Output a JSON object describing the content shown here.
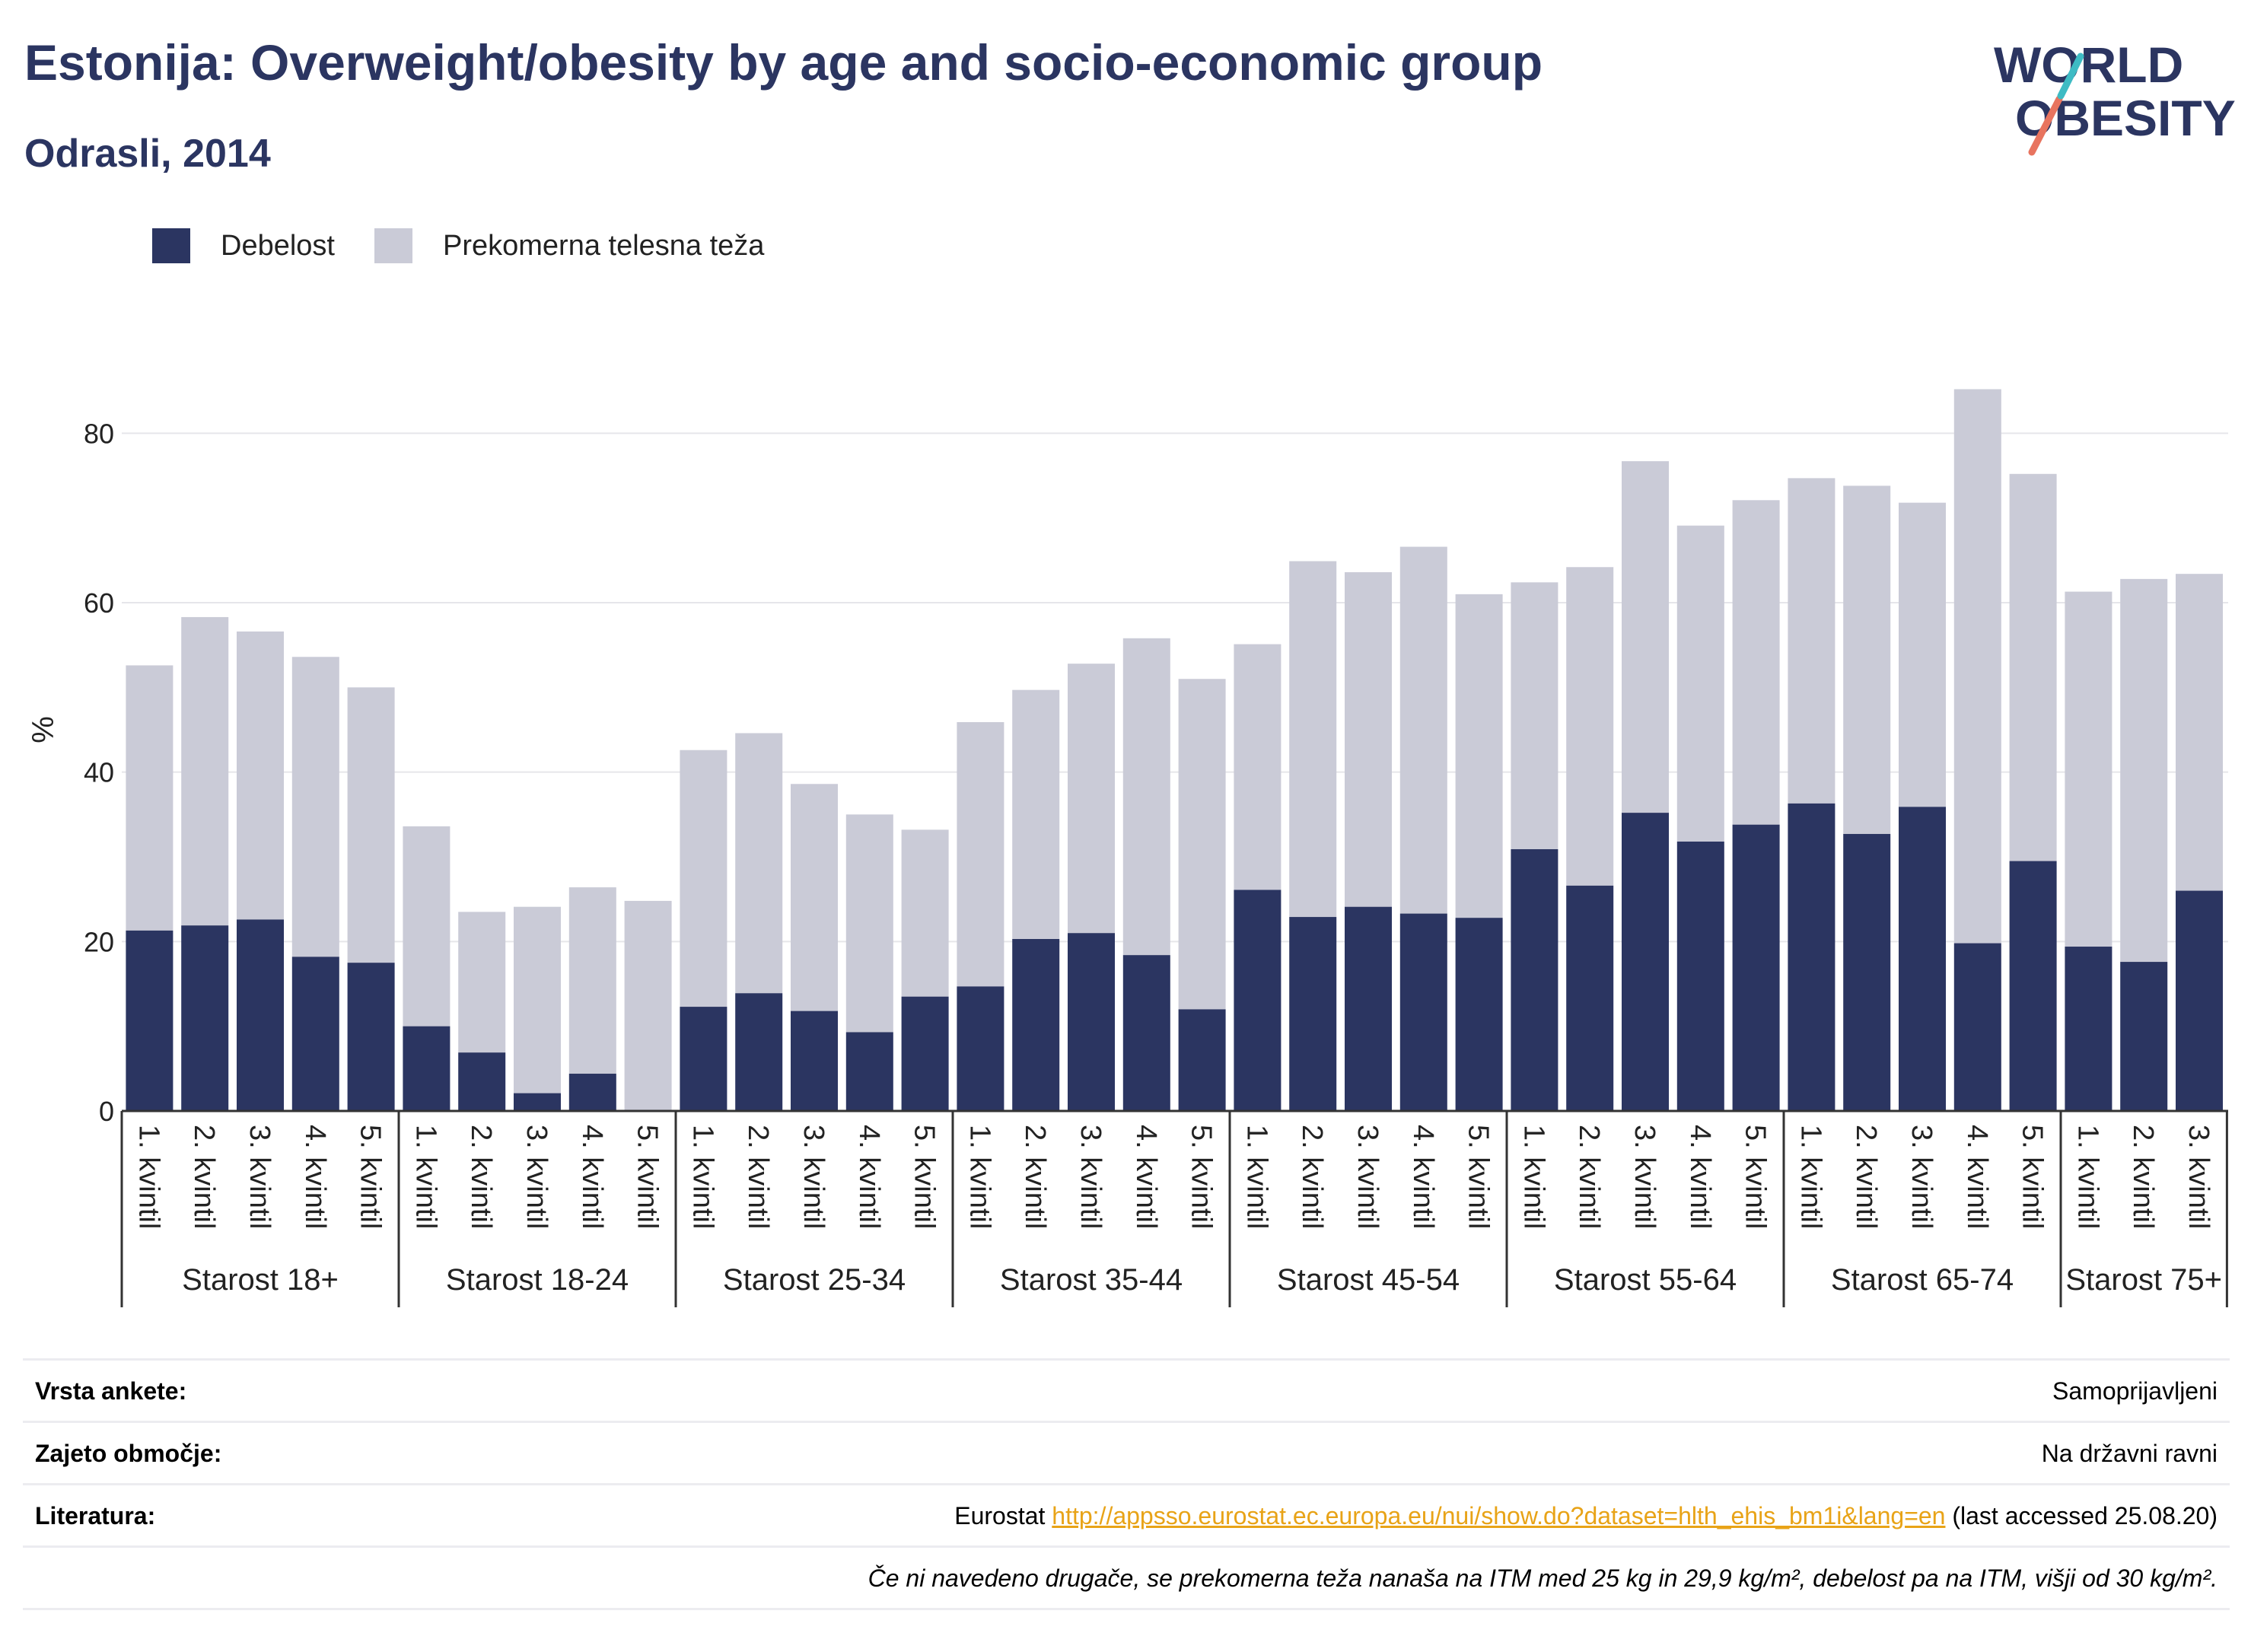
{
  "header": {
    "title": "Estonija: Overweight/obesity by age and socio-economic group",
    "subtitle": "Odrasli, 2014"
  },
  "logo": {
    "line1": "WORLD",
    "line2": "OBESITY"
  },
  "colors": {
    "obesity": "#2b3561",
    "overweight": "#cacbd7",
    "title": "#2b3561",
    "link": "#e8a317"
  },
  "legend": {
    "obesity_label": "Debelost",
    "overweight_label": "Prekomerna telesna teža"
  },
  "chart_data": {
    "type": "bar",
    "stacked": true,
    "ylabel": "%",
    "ylim": [
      0,
      90
    ],
    "yticks": [
      0,
      20,
      40,
      60,
      80
    ],
    "grid": true,
    "legend_position": "top-left",
    "groups": [
      {
        "label": "Starost 18+",
        "categories": [
          "1. kvintil",
          "2. kvintil",
          "3. kvintil",
          "4. kvintil",
          "5. kvintil"
        ],
        "obesity": [
          21.3,
          21.9,
          22.6,
          18.2,
          17.5
        ],
        "total": [
          52.6,
          58.3,
          56.6,
          53.6,
          50.0
        ]
      },
      {
        "label": "Starost 18-24",
        "categories": [
          "1. kvintil",
          "2. kvintil",
          "3. kvintil",
          "4. kvintil",
          "5. kvintil"
        ],
        "obesity": [
          10.0,
          6.9,
          2.1,
          4.4,
          0.0
        ],
        "total": [
          33.6,
          23.5,
          24.1,
          26.4,
          24.8
        ]
      },
      {
        "label": "Starost 25-34",
        "categories": [
          "1. kvintil",
          "2. kvintil",
          "3. kvintil",
          "4. kvintil",
          "5. kvintil"
        ],
        "obesity": [
          12.3,
          13.9,
          11.8,
          9.3,
          13.5
        ],
        "total": [
          42.6,
          44.6,
          38.6,
          35.0,
          33.2
        ]
      },
      {
        "label": "Starost 35-44",
        "categories": [
          "1. kvintil",
          "2. kvintil",
          "3. kvintil",
          "4. kvintil",
          "5. kvintil"
        ],
        "obesity": [
          14.7,
          20.3,
          21.0,
          18.4,
          12.0
        ],
        "total": [
          45.9,
          49.7,
          52.8,
          55.8,
          51.0
        ]
      },
      {
        "label": "Starost 45-54",
        "categories": [
          "1. kvintil",
          "2. kvintil",
          "3. kvintil",
          "4. kvintil",
          "5. kvintil"
        ],
        "obesity": [
          26.1,
          22.9,
          24.1,
          23.3,
          22.8
        ],
        "total": [
          55.1,
          64.9,
          63.6,
          66.6,
          61.0
        ]
      },
      {
        "label": "Starost 55-64",
        "categories": [
          "1. kvintil",
          "2. kvintil",
          "3. kvintil",
          "4. kvintil",
          "5. kvintil"
        ],
        "obesity": [
          30.9,
          26.6,
          35.2,
          31.8,
          33.8
        ],
        "total": [
          62.4,
          64.2,
          76.7,
          69.1,
          72.1
        ]
      },
      {
        "label": "Starost 65-74",
        "categories": [
          "1. kvintil",
          "2. kvintil",
          "3. kvintil",
          "4. kvintil",
          "5. kvintil"
        ],
        "obesity": [
          36.3,
          32.7,
          35.9,
          19.8,
          29.5
        ],
        "total": [
          74.7,
          73.8,
          71.8,
          85.2,
          75.2
        ]
      },
      {
        "label": "Starost 75+",
        "categories": [
          "1. kvintil",
          "2. kvintil",
          "3. kvintil"
        ],
        "obesity": [
          19.4,
          17.6,
          26.0
        ],
        "total": [
          61.3,
          62.8,
          63.4
        ]
      }
    ]
  },
  "info": {
    "survey_label": "Vrsta ankete:",
    "survey_value": "Samoprijavljeni",
    "coverage_label": "Zajeto območje:",
    "coverage_value": "Na državni ravni",
    "reference_label": "Literatura:",
    "reference_prefix": "Eurostat ",
    "reference_url": "http://appsso.eurostat.ec.europa.eu/nui/show.do?dataset=hlth_ehis_bm1i&lang=en",
    "reference_suffix": " (last accessed 25.08.20)",
    "note": "Če ni navedeno drugače, se prekomerna teža nanaša na ITM med 25 kg in 29,9 kg/m², debelost pa na ITM, višji od 30 kg/m²."
  }
}
